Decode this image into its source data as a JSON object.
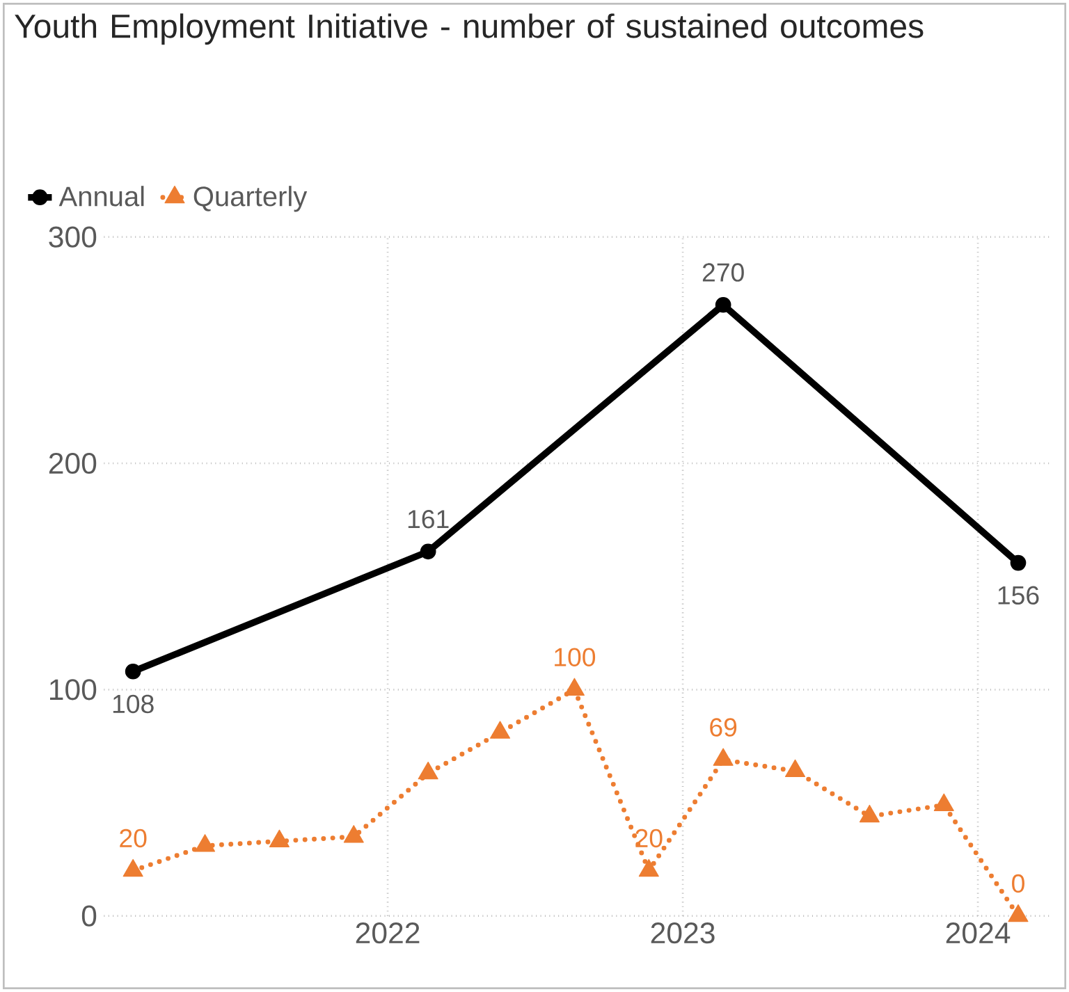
{
  "chart_data": {
    "type": "line",
    "title": "Youth Employment Initiative - number of sustained outcomes",
    "xlim": [
      "2021-01-15",
      "2024-03-31"
    ],
    "xticks": [
      "2022",
      "2023",
      "2024"
    ],
    "ylim": [
      0,
      300
    ],
    "yticks": [
      0,
      100,
      200,
      300
    ],
    "grid": true,
    "legend": "top left",
    "series": [
      {
        "name": "Annual",
        "color": "#000000",
        "marker": "circle",
        "line_style": "solid",
        "x": [
          "2021-02-20",
          "2022-02-20",
          "2023-02-20",
          "2024-02-20"
        ],
        "values": [
          108,
          161,
          270,
          156
        ],
        "value_labels": [
          "108",
          "161",
          "270",
          "156"
        ]
      },
      {
        "name": "Quarterly",
        "color": "#ed7d31",
        "marker": "triangle",
        "line_style": "dotted",
        "x": [
          "2021-02-20",
          "2021-05-20",
          "2021-08-20",
          "2021-11-20",
          "2022-02-20",
          "2022-05-20",
          "2022-08-20",
          "2022-11-20",
          "2023-02-20",
          "2023-05-20",
          "2023-08-20",
          "2023-11-20",
          "2024-02-20"
        ],
        "values": [
          20,
          31,
          33,
          35,
          63,
          81,
          100,
          20,
          69,
          64,
          44,
          49,
          0
        ],
        "value_labels": [
          "20",
          null,
          null,
          null,
          null,
          null,
          "100",
          "20",
          "69",
          null,
          null,
          null,
          "0"
        ]
      }
    ]
  }
}
